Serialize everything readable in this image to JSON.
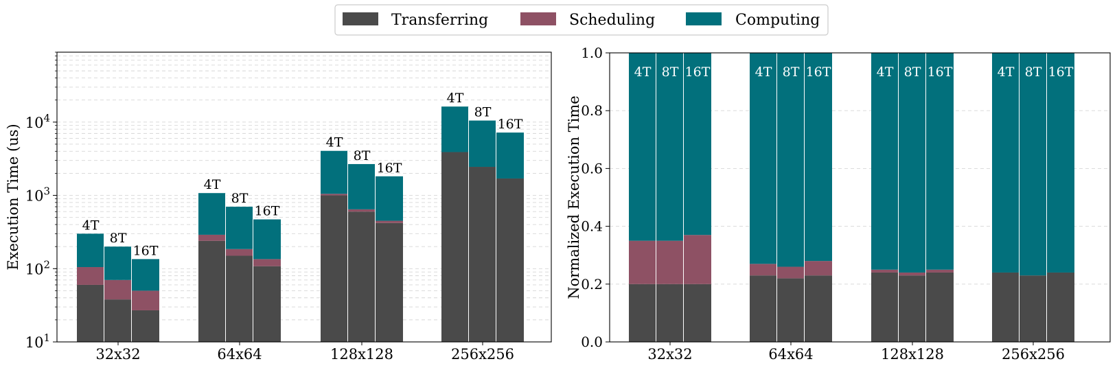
{
  "legend": {
    "items": [
      {
        "label": "Transferring",
        "color": "#4a4a4a"
      },
      {
        "label": "Scheduling",
        "color": "#8e5164"
      },
      {
        "label": "Computing",
        "color": "#02707c"
      }
    ]
  },
  "chart_data": [
    {
      "type": "bar",
      "stacked": true,
      "title": "",
      "xlabel": "",
      "ylabel": "Execution Time (us)",
      "yscale": "log",
      "ylim": [
        10,
        90000
      ],
      "ytick_bases": [
        "10",
        "10",
        "10",
        "10"
      ],
      "ytick_exponents": [
        "1",
        "2",
        "3",
        "4"
      ],
      "ytick_values": [
        10,
        100,
        1000,
        10000
      ],
      "grid": true,
      "categories": [
        "32x32",
        "64x64",
        "128x128",
        "256x256"
      ],
      "thread_labels": [
        "4T",
        "8T",
        "16T"
      ],
      "series": [
        {
          "name": "Transferring",
          "values": [
            [
              60,
              38,
              27
            ],
            [
              240,
              150,
              108
            ],
            [
              1000,
              600,
              420
            ],
            [
              3900,
              2450,
              1700
            ]
          ]
        },
        {
          "name": "Scheduling",
          "values": [
            [
              45,
              32,
              23
            ],
            [
              50,
              35,
              27
            ],
            [
              50,
              45,
              30
            ],
            [
              0,
              0,
              0
            ]
          ]
        },
        {
          "name": "Computing",
          "values": [
            [
              195,
              130,
              85
            ],
            [
              785,
              515,
              335
            ],
            [
              3000,
              2030,
              1370
            ],
            [
              12400,
              8050,
              5500
            ]
          ]
        }
      ]
    },
    {
      "type": "bar",
      "stacked": true,
      "title": "",
      "xlabel": "",
      "ylabel": "Normalized Execution Time",
      "ylim": [
        0,
        1.0
      ],
      "yticks": [
        "0.0",
        "0.2",
        "0.4",
        "0.6",
        "0.8",
        "1.0"
      ],
      "ytick_values": [
        0,
        0.2,
        0.4,
        0.6,
        0.8,
        1.0
      ],
      "grid": true,
      "categories": [
        "32x32",
        "64x64",
        "128x128",
        "256x256"
      ],
      "thread_labels": [
        "4T",
        "8T",
        "16T"
      ],
      "series": [
        {
          "name": "Transferring",
          "values": [
            [
              0.2,
              0.2,
              0.2
            ],
            [
              0.23,
              0.22,
              0.23
            ],
            [
              0.24,
              0.23,
              0.24
            ],
            [
              0.24,
              0.23,
              0.24
            ]
          ]
        },
        {
          "name": "Scheduling",
          "values": [
            [
              0.15,
              0.15,
              0.17
            ],
            [
              0.04,
              0.04,
              0.05
            ],
            [
              0.01,
              0.01,
              0.01
            ],
            [
              0.0,
              0.0,
              0.0
            ]
          ]
        },
        {
          "name": "Computing",
          "values": [
            [
              0.65,
              0.65,
              0.63
            ],
            [
              0.73,
              0.74,
              0.72
            ],
            [
              0.75,
              0.76,
              0.75
            ],
            [
              0.76,
              0.77,
              0.76
            ]
          ]
        }
      ]
    }
  ]
}
